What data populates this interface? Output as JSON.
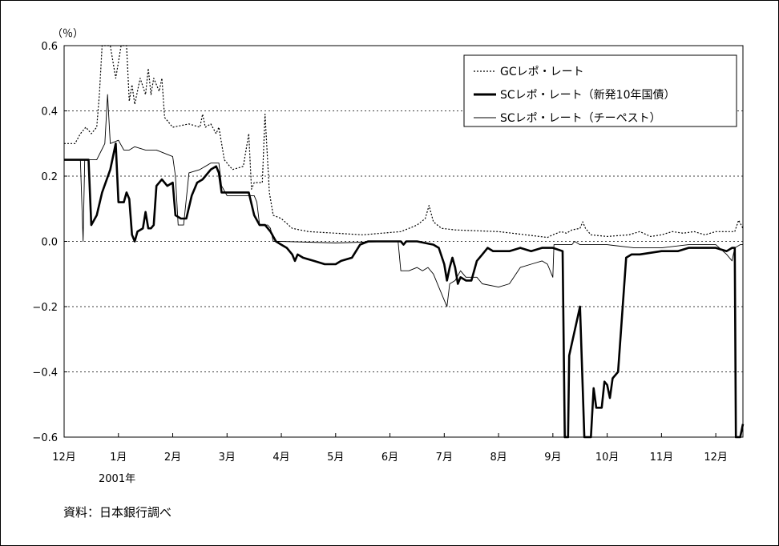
{
  "source_note": "資料：日本銀行調べ",
  "chart_data": {
    "type": "line",
    "unit_label": "（％）",
    "year_label": "2001年",
    "ylim": [
      -0.6,
      0.6
    ],
    "y_ticks": [
      0.6,
      0.4,
      0.2,
      0.0,
      -0.2,
      -0.4,
      -0.6
    ],
    "y_tick_labels": [
      "0.6",
      "0.4",
      "0.2",
      "0.0",
      "−0.2",
      "−0.4",
      "−0.6"
    ],
    "xlim": [
      0,
      12.5
    ],
    "x_tick_labels": [
      "12月",
      "1月",
      "2月",
      "3月",
      "4月",
      "5月",
      "6月",
      "7月",
      "8月",
      "9月",
      "10月",
      "11月",
      "12月"
    ],
    "grid": "horizontal dotted",
    "legend_position": "top-right",
    "series": [
      {
        "name": "GCレポ・レート",
        "style": "dotted",
        "points": [
          [
            0.0,
            0.3
          ],
          [
            0.2,
            0.3
          ],
          [
            0.3,
            0.33
          ],
          [
            0.4,
            0.35
          ],
          [
            0.5,
            0.33
          ],
          [
            0.6,
            0.35
          ],
          [
            0.65,
            0.45
          ],
          [
            0.7,
            0.6
          ],
          [
            0.85,
            0.6
          ],
          [
            0.95,
            0.5
          ],
          [
            1.0,
            0.55
          ],
          [
            1.05,
            0.6
          ],
          [
            1.15,
            0.6
          ],
          [
            1.2,
            0.43
          ],
          [
            1.25,
            0.48
          ],
          [
            1.3,
            0.42
          ],
          [
            1.4,
            0.5
          ],
          [
            1.5,
            0.45
          ],
          [
            1.55,
            0.53
          ],
          [
            1.6,
            0.45
          ],
          [
            1.65,
            0.5
          ],
          [
            1.75,
            0.46
          ],
          [
            1.8,
            0.5
          ],
          [
            1.85,
            0.38
          ],
          [
            2.0,
            0.35
          ],
          [
            2.3,
            0.36
          ],
          [
            2.5,
            0.35
          ],
          [
            2.55,
            0.39
          ],
          [
            2.6,
            0.35
          ],
          [
            2.7,
            0.36
          ],
          [
            2.8,
            0.33
          ],
          [
            2.85,
            0.35
          ],
          [
            2.95,
            0.25
          ],
          [
            3.1,
            0.22
          ],
          [
            3.3,
            0.23
          ],
          [
            3.4,
            0.33
          ],
          [
            3.45,
            0.16
          ],
          [
            3.5,
            0.18
          ],
          [
            3.65,
            0.18
          ],
          [
            3.7,
            0.39
          ],
          [
            3.78,
            0.15
          ],
          [
            3.85,
            0.08
          ],
          [
            4.0,
            0.07
          ],
          [
            4.2,
            0.04
          ],
          [
            4.5,
            0.03
          ],
          [
            5.0,
            0.025
          ],
          [
            5.5,
            0.02
          ],
          [
            6.2,
            0.03
          ],
          [
            6.5,
            0.05
          ],
          [
            6.65,
            0.07
          ],
          [
            6.72,
            0.11
          ],
          [
            6.8,
            0.06
          ],
          [
            6.95,
            0.04
          ],
          [
            7.2,
            0.035
          ],
          [
            8.0,
            0.03
          ],
          [
            8.5,
            0.02
          ],
          [
            8.9,
            0.012
          ],
          [
            9.0,
            0.02
          ],
          [
            9.15,
            0.03
          ],
          [
            9.25,
            0.025
          ],
          [
            9.35,
            0.035
          ],
          [
            9.5,
            0.04
          ],
          [
            9.55,
            0.06
          ],
          [
            9.6,
            0.04
          ],
          [
            9.7,
            0.02
          ],
          [
            10.0,
            0.015
          ],
          [
            10.4,
            0.02
          ],
          [
            10.6,
            0.03
          ],
          [
            10.8,
            0.015
          ],
          [
            11.0,
            0.02
          ],
          [
            11.2,
            0.03
          ],
          [
            11.4,
            0.025
          ],
          [
            11.6,
            0.03
          ],
          [
            11.8,
            0.02
          ],
          [
            12.0,
            0.03
          ],
          [
            12.2,
            0.03
          ],
          [
            12.35,
            0.03
          ],
          [
            12.42,
            0.065
          ],
          [
            12.5,
            0.04
          ]
        ]
      },
      {
        "name": "SCレポ・レート（新発10年国債）",
        "style": "thick",
        "points": [
          [
            0.0,
            0.25
          ],
          [
            0.3,
            0.25
          ],
          [
            0.45,
            0.25
          ],
          [
            0.5,
            0.05
          ],
          [
            0.6,
            0.08
          ],
          [
            0.7,
            0.15
          ],
          [
            0.85,
            0.22
          ],
          [
            0.95,
            0.3
          ],
          [
            1.0,
            0.12
          ],
          [
            1.1,
            0.12
          ],
          [
            1.15,
            0.15
          ],
          [
            1.2,
            0.13
          ],
          [
            1.25,
            0.02
          ],
          [
            1.3,
            0.0
          ],
          [
            1.35,
            0.03
          ],
          [
            1.45,
            0.04
          ],
          [
            1.5,
            0.09
          ],
          [
            1.55,
            0.04
          ],
          [
            1.6,
            0.04
          ],
          [
            1.65,
            0.05
          ],
          [
            1.7,
            0.17
          ],
          [
            1.8,
            0.19
          ],
          [
            1.9,
            0.17
          ],
          [
            2.0,
            0.18
          ],
          [
            2.05,
            0.08
          ],
          [
            2.15,
            0.07
          ],
          [
            2.25,
            0.07
          ],
          [
            2.35,
            0.14
          ],
          [
            2.45,
            0.18
          ],
          [
            2.55,
            0.19
          ],
          [
            2.6,
            0.2
          ],
          [
            2.7,
            0.22
          ],
          [
            2.8,
            0.23
          ],
          [
            2.85,
            0.21
          ],
          [
            2.9,
            0.15
          ],
          [
            3.0,
            0.15
          ],
          [
            3.4,
            0.15
          ],
          [
            3.5,
            0.08
          ],
          [
            3.6,
            0.05
          ],
          [
            3.7,
            0.05
          ],
          [
            3.8,
            0.03
          ],
          [
            3.9,
            0.0
          ],
          [
            4.0,
            -0.01
          ],
          [
            4.1,
            -0.02
          ],
          [
            4.2,
            -0.04
          ],
          [
            4.25,
            -0.06
          ],
          [
            4.3,
            -0.04
          ],
          [
            4.4,
            -0.05
          ],
          [
            4.6,
            -0.06
          ],
          [
            4.8,
            -0.07
          ],
          [
            5.0,
            -0.07
          ],
          [
            5.1,
            -0.06
          ],
          [
            5.3,
            -0.05
          ],
          [
            5.45,
            -0.01
          ],
          [
            5.6,
            0.0
          ],
          [
            6.0,
            0.0
          ],
          [
            6.2,
            0.0
          ],
          [
            6.25,
            -0.01
          ],
          [
            6.3,
            0.0
          ],
          [
            6.5,
            0.0
          ],
          [
            6.8,
            -0.01
          ],
          [
            6.9,
            -0.02
          ],
          [
            7.0,
            -0.07
          ],
          [
            7.05,
            -0.12
          ],
          [
            7.1,
            -0.08
          ],
          [
            7.15,
            -0.05
          ],
          [
            7.2,
            -0.08
          ],
          [
            7.25,
            -0.13
          ],
          [
            7.3,
            -0.11
          ],
          [
            7.4,
            -0.12
          ],
          [
            7.5,
            -0.12
          ],
          [
            7.6,
            -0.06
          ],
          [
            7.7,
            -0.04
          ],
          [
            7.8,
            -0.02
          ],
          [
            7.9,
            -0.03
          ],
          [
            8.2,
            -0.03
          ],
          [
            8.4,
            -0.02
          ],
          [
            8.6,
            -0.03
          ],
          [
            8.8,
            -0.02
          ],
          [
            9.0,
            -0.02
          ],
          [
            9.18,
            -0.03
          ],
          [
            9.22,
            -0.6
          ],
          [
            9.28,
            -0.6
          ],
          [
            9.3,
            -0.35
          ],
          [
            9.5,
            -0.2
          ],
          [
            9.55,
            -0.45
          ],
          [
            9.58,
            -0.6
          ],
          [
            9.65,
            -0.6
          ],
          [
            9.7,
            -0.6
          ],
          [
            9.75,
            -0.45
          ],
          [
            9.8,
            -0.51
          ],
          [
            9.9,
            -0.51
          ],
          [
            9.95,
            -0.43
          ],
          [
            10.0,
            -0.44
          ],
          [
            10.05,
            -0.48
          ],
          [
            10.1,
            -0.42
          ],
          [
            10.2,
            -0.4
          ],
          [
            10.35,
            -0.05
          ],
          [
            10.45,
            -0.04
          ],
          [
            10.6,
            -0.04
          ],
          [
            11.0,
            -0.03
          ],
          [
            11.3,
            -0.03
          ],
          [
            11.5,
            -0.02
          ],
          [
            11.8,
            -0.02
          ],
          [
            12.0,
            -0.02
          ],
          [
            12.2,
            -0.03
          ],
          [
            12.3,
            -0.02
          ],
          [
            12.35,
            -0.02
          ],
          [
            12.37,
            -0.6
          ],
          [
            12.45,
            -0.6
          ],
          [
            12.5,
            -0.56
          ]
        ]
      },
      {
        "name": "SCレポ・レート（チーペスト）",
        "style": "thin",
        "points": [
          [
            0.0,
            0.25
          ],
          [
            0.3,
            0.25
          ],
          [
            0.35,
            0.0
          ],
          [
            0.38,
            0.25
          ],
          [
            0.6,
            0.25
          ],
          [
            0.75,
            0.3
          ],
          [
            0.8,
            0.45
          ],
          [
            0.85,
            0.3
          ],
          [
            1.0,
            0.31
          ],
          [
            1.1,
            0.28
          ],
          [
            1.2,
            0.28
          ],
          [
            1.3,
            0.29
          ],
          [
            1.5,
            0.28
          ],
          [
            1.7,
            0.28
          ],
          [
            2.0,
            0.26
          ],
          [
            2.05,
            0.2
          ],
          [
            2.1,
            0.05
          ],
          [
            2.2,
            0.05
          ],
          [
            2.3,
            0.21
          ],
          [
            2.5,
            0.22
          ],
          [
            2.7,
            0.24
          ],
          [
            2.8,
            0.24
          ],
          [
            2.85,
            0.24
          ],
          [
            2.9,
            0.17
          ],
          [
            3.0,
            0.14
          ],
          [
            3.5,
            0.14
          ],
          [
            3.55,
            0.12
          ],
          [
            3.6,
            0.05
          ],
          [
            3.75,
            0.05
          ],
          [
            3.8,
            0.04
          ],
          [
            3.85,
            0.0
          ],
          [
            4.0,
            0.0
          ],
          [
            5.0,
            -0.005
          ],
          [
            6.0,
            0.0
          ],
          [
            6.15,
            0.0
          ],
          [
            6.2,
            -0.09
          ],
          [
            6.35,
            -0.09
          ],
          [
            6.5,
            -0.08
          ],
          [
            6.6,
            -0.09
          ],
          [
            6.7,
            -0.08
          ],
          [
            6.8,
            -0.1
          ],
          [
            6.9,
            -0.14
          ],
          [
            7.0,
            -0.18
          ],
          [
            7.05,
            -0.2
          ],
          [
            7.1,
            -0.13
          ],
          [
            7.2,
            -0.12
          ],
          [
            7.3,
            -0.09
          ],
          [
            7.4,
            -0.11
          ],
          [
            7.6,
            -0.11
          ],
          [
            7.7,
            -0.13
          ],
          [
            8.0,
            -0.14
          ],
          [
            8.2,
            -0.13
          ],
          [
            8.4,
            -0.08
          ],
          [
            8.6,
            -0.07
          ],
          [
            8.8,
            -0.06
          ],
          [
            8.9,
            -0.07
          ],
          [
            9.0,
            -0.11
          ],
          [
            9.02,
            -0.01
          ],
          [
            9.2,
            -0.01
          ],
          [
            9.35,
            -0.01
          ],
          [
            9.4,
            0.0
          ],
          [
            9.5,
            -0.01
          ],
          [
            10.0,
            -0.01
          ],
          [
            10.5,
            -0.02
          ],
          [
            11.0,
            -0.02
          ],
          [
            11.5,
            -0.01
          ],
          [
            12.0,
            -0.01
          ],
          [
            12.2,
            -0.04
          ],
          [
            12.3,
            -0.06
          ],
          [
            12.35,
            -0.02
          ],
          [
            12.45,
            -0.01
          ],
          [
            12.5,
            -0.01
          ]
        ]
      }
    ]
  }
}
